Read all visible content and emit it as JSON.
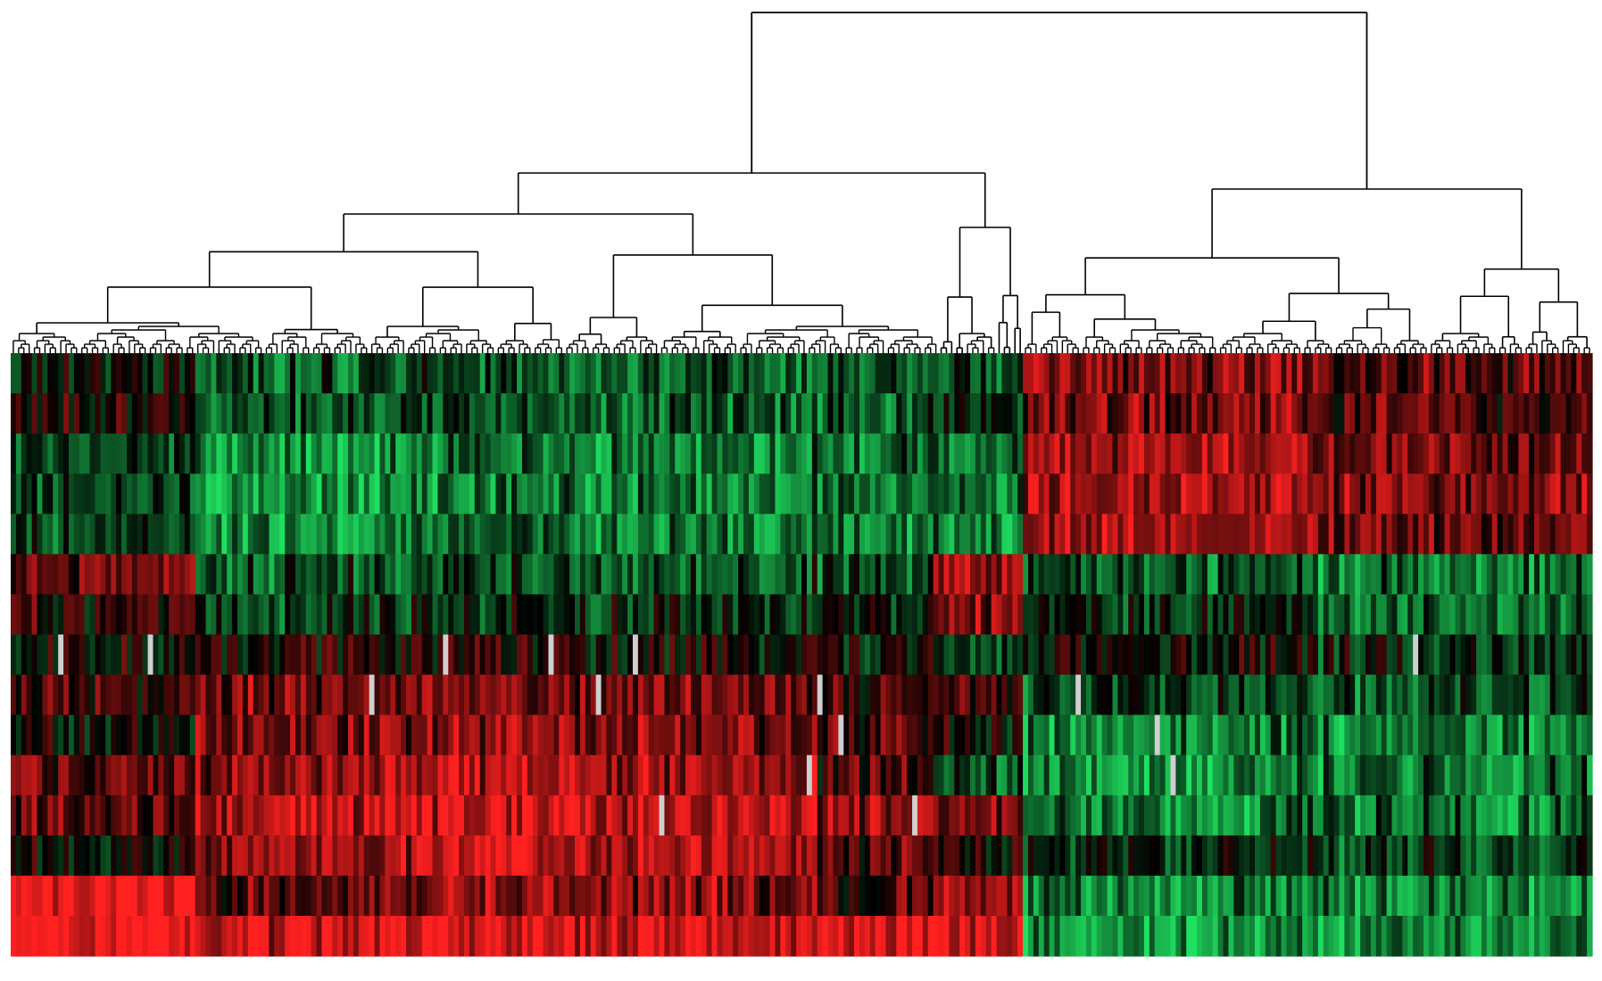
{
  "chart_data": {
    "type": "heatmap",
    "title": "",
    "xlabel": "",
    "ylabel": "",
    "legend": "none",
    "colormap": {
      "low": "#1fe060",
      "mid": "#000000",
      "high": "#ff2020",
      "missing": "#cfcfcf",
      "range": [
        -1,
        1
      ]
    },
    "row_count": 15,
    "column_blocks": [
      {
        "from": 0,
        "to": 0.117,
        "row_levels": [
          -0.1,
          0.05,
          -0.35,
          -0.35,
          -0.3,
          0.35,
          0.15,
          0.0,
          0.2,
          -0.05,
          0.4,
          0.35,
          0.0,
          0.9,
          0.9
        ]
      },
      {
        "from": 0.117,
        "to": 0.27,
        "row_levels": [
          -0.4,
          -0.4,
          -0.65,
          -0.65,
          -0.6,
          -0.35,
          -0.25,
          0.1,
          0.45,
          0.5,
          0.55,
          0.7,
          0.6,
          0.35,
          0.8
        ]
      },
      {
        "from": 0.27,
        "to": 0.51,
        "row_levels": [
          -0.45,
          -0.4,
          -0.55,
          -0.55,
          -0.55,
          -0.3,
          -0.2,
          0.05,
          0.45,
          0.5,
          0.6,
          0.75,
          0.65,
          0.5,
          0.8
        ]
      },
      {
        "from": 0.51,
        "to": 0.585,
        "row_levels": [
          -0.35,
          -0.35,
          -0.5,
          -0.5,
          -0.55,
          -0.3,
          -0.15,
          0.0,
          0.3,
          0.35,
          0.25,
          0.55,
          0.35,
          0.2,
          0.85
        ]
      },
      {
        "from": 0.585,
        "to": 0.64,
        "row_levels": [
          -0.3,
          -0.2,
          -0.45,
          -0.45,
          -0.5,
          0.65,
          0.55,
          -0.2,
          0.2,
          0.05,
          -0.3,
          0.45,
          0.1,
          0.6,
          0.75
        ]
      },
      {
        "from": 0.64,
        "to": 0.82,
        "row_levels": [
          0.45,
          0.45,
          0.6,
          0.6,
          0.6,
          -0.35,
          -0.2,
          -0.05,
          -0.3,
          -0.55,
          -0.6,
          -0.55,
          -0.2,
          -0.6,
          -0.65
        ]
      },
      {
        "from": 0.82,
        "to": 1.0,
        "row_levels": [
          0.35,
          0.3,
          0.45,
          0.45,
          0.4,
          -0.45,
          -0.45,
          -0.15,
          -0.35,
          -0.5,
          -0.5,
          -0.45,
          -0.25,
          -0.55,
          -0.55
        ]
      }
    ],
    "dendrogram": {
      "orientation": "top",
      "leaf_count": 120,
      "top_level_groups": [
        {
          "name": "",
          "from": 0,
          "to": 0.585
        },
        {
          "name": "",
          "from": 0.585,
          "to": 0.64
        },
        {
          "name": "",
          "from": 0.64,
          "to": 1.0
        }
      ]
    }
  }
}
